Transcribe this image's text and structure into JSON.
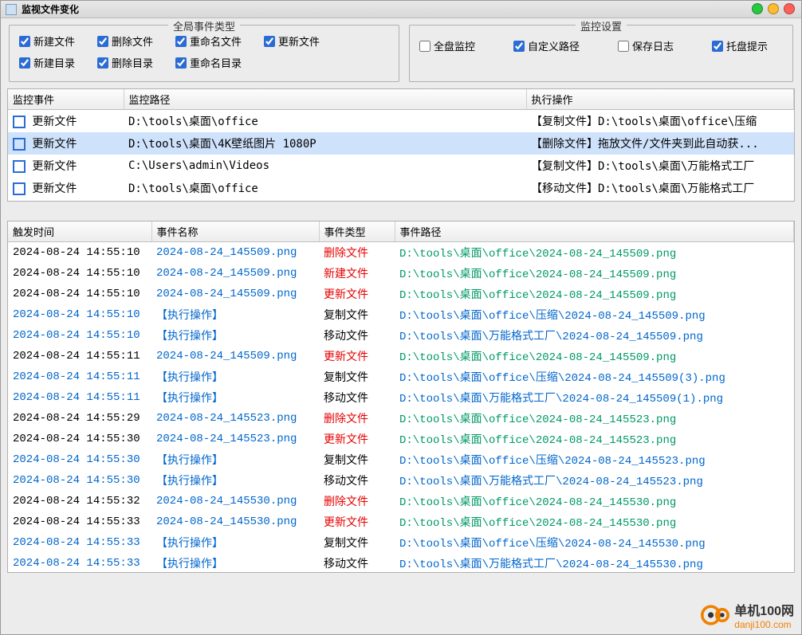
{
  "title": "监视文件变化",
  "group1": {
    "legend": "全局事件类型",
    "row1": [
      {
        "label": "新建文件",
        "checked": true
      },
      {
        "label": "删除文件",
        "checked": true
      },
      {
        "label": "重命名文件",
        "checked": true
      },
      {
        "label": "更新文件",
        "checked": true
      }
    ],
    "row2": [
      {
        "label": "新建目录",
        "checked": true
      },
      {
        "label": "删除目录",
        "checked": true
      },
      {
        "label": "重命名目录",
        "checked": true
      }
    ]
  },
  "group2": {
    "legend": "监控设置",
    "row": [
      {
        "label": "全盘监控",
        "checked": false
      },
      {
        "label": "自定义路径",
        "checked": true
      },
      {
        "label": "保存日志",
        "checked": false
      },
      {
        "label": "托盘提示",
        "checked": true
      }
    ]
  },
  "monitorHeaders": [
    "监控事件",
    "监控路径",
    "执行操作"
  ],
  "monitorCols": [
    "145px",
    "505px",
    "auto"
  ],
  "monitorRows": [
    {
      "evt": "更新文件",
      "path": "D:\\tools\\桌面\\office",
      "action": "【复制文件】D:\\tools\\桌面\\office\\压缩",
      "sel": false
    },
    {
      "evt": "更新文件",
      "path": "D:\\tools\\桌面\\4K壁纸图片 1080P",
      "action": "【删除文件】拖放文件/文件夹到此自动获...",
      "sel": true
    },
    {
      "evt": "更新文件",
      "path": "C:\\Users\\admin\\Videos",
      "action": "【复制文件】D:\\tools\\桌面\\万能格式工厂",
      "sel": false
    },
    {
      "evt": "更新文件",
      "path": "D:\\tools\\桌面\\office",
      "action": "【移动文件】D:\\tools\\桌面\\万能格式工厂",
      "sel": false
    }
  ],
  "eventHeaders": [
    "触发时间",
    "事件名称",
    "事件类型",
    "事件路径"
  ],
  "eventCols": [
    "180px",
    "210px",
    "95px",
    "auto"
  ],
  "eventRows": [
    {
      "t": "2024-08-24 14:55:10",
      "tc": "black",
      "n": "2024-08-24_145509.png",
      "nc": "blue",
      "k": "删除文件",
      "kc": "red",
      "p": "D:\\tools\\桌面\\office\\2024-08-24_145509.png",
      "pc": "green"
    },
    {
      "t": "2024-08-24 14:55:10",
      "tc": "black",
      "n": "2024-08-24_145509.png",
      "nc": "blue",
      "k": "新建文件",
      "kc": "red",
      "p": "D:\\tools\\桌面\\office\\2024-08-24_145509.png",
      "pc": "green"
    },
    {
      "t": "2024-08-24 14:55:10",
      "tc": "black",
      "n": "2024-08-24_145509.png",
      "nc": "blue",
      "k": "更新文件",
      "kc": "red",
      "p": "D:\\tools\\桌面\\office\\2024-08-24_145509.png",
      "pc": "green"
    },
    {
      "t": "2024-08-24 14:55:10",
      "tc": "blue",
      "n": "【执行操作】",
      "nc": "blue",
      "k": "复制文件",
      "kc": "black",
      "p": "D:\\tools\\桌面\\office\\压缩\\2024-08-24_145509.png",
      "pc": "blue"
    },
    {
      "t": "2024-08-24 14:55:10",
      "tc": "blue",
      "n": "【执行操作】",
      "nc": "blue",
      "k": "移动文件",
      "kc": "black",
      "p": "D:\\tools\\桌面\\万能格式工厂\\2024-08-24_145509.png",
      "pc": "blue"
    },
    {
      "t": "2024-08-24 14:55:11",
      "tc": "black",
      "n": "2024-08-24_145509.png",
      "nc": "blue",
      "k": "更新文件",
      "kc": "red",
      "p": "D:\\tools\\桌面\\office\\2024-08-24_145509.png",
      "pc": "green"
    },
    {
      "t": "2024-08-24 14:55:11",
      "tc": "blue",
      "n": "【执行操作】",
      "nc": "blue",
      "k": "复制文件",
      "kc": "black",
      "p": "D:\\tools\\桌面\\office\\压缩\\2024-08-24_145509(3).png",
      "pc": "blue"
    },
    {
      "t": "2024-08-24 14:55:11",
      "tc": "blue",
      "n": "【执行操作】",
      "nc": "blue",
      "k": "移动文件",
      "kc": "black",
      "p": "D:\\tools\\桌面\\万能格式工厂\\2024-08-24_145509(1).png",
      "pc": "blue"
    },
    {
      "t": "2024-08-24 14:55:29",
      "tc": "black",
      "n": "2024-08-24_145523.png",
      "nc": "blue",
      "k": "删除文件",
      "kc": "red",
      "p": "D:\\tools\\桌面\\office\\2024-08-24_145523.png",
      "pc": "green"
    },
    {
      "t": "2024-08-24 14:55:30",
      "tc": "black",
      "n": "2024-08-24_145523.png",
      "nc": "blue",
      "k": "更新文件",
      "kc": "red",
      "p": "D:\\tools\\桌面\\office\\2024-08-24_145523.png",
      "pc": "green"
    },
    {
      "t": "2024-08-24 14:55:30",
      "tc": "blue",
      "n": "【执行操作】",
      "nc": "blue",
      "k": "复制文件",
      "kc": "black",
      "p": "D:\\tools\\桌面\\office\\压缩\\2024-08-24_145523.png",
      "pc": "blue"
    },
    {
      "t": "2024-08-24 14:55:30",
      "tc": "blue",
      "n": "【执行操作】",
      "nc": "blue",
      "k": "移动文件",
      "kc": "black",
      "p": "D:\\tools\\桌面\\万能格式工厂\\2024-08-24_145523.png",
      "pc": "blue"
    },
    {
      "t": "2024-08-24 14:55:32",
      "tc": "black",
      "n": "2024-08-24_145530.png",
      "nc": "blue",
      "k": "删除文件",
      "kc": "red",
      "p": "D:\\tools\\桌面\\office\\2024-08-24_145530.png",
      "pc": "green"
    },
    {
      "t": "2024-08-24 14:55:33",
      "tc": "black",
      "n": "2024-08-24_145530.png",
      "nc": "blue",
      "k": "更新文件",
      "kc": "red",
      "p": "D:\\tools\\桌面\\office\\2024-08-24_145530.png",
      "pc": "green"
    },
    {
      "t": "2024-08-24 14:55:33",
      "tc": "blue",
      "n": "【执行操作】",
      "nc": "blue",
      "k": "复制文件",
      "kc": "black",
      "p": "D:\\tools\\桌面\\office\\压缩\\2024-08-24_145530.png",
      "pc": "blue"
    },
    {
      "t": "2024-08-24 14:55:33",
      "tc": "blue",
      "n": "【执行操作】",
      "nc": "blue",
      "k": "移动文件",
      "kc": "black",
      "p": "D:\\tools\\桌面\\万能格式工厂\\2024-08-24_145530.png",
      "pc": "blue"
    }
  ],
  "watermark": {
    "name": "单机100网",
    "url": "danji100.com",
    "color": "#f08000"
  }
}
